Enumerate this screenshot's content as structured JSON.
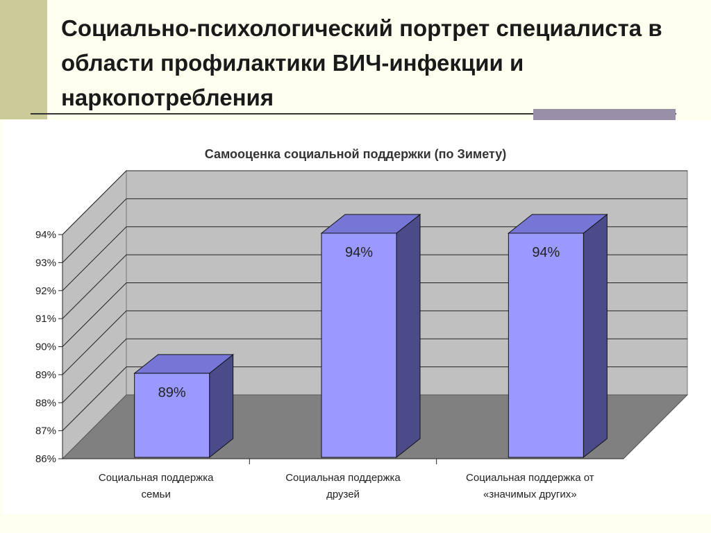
{
  "slide": {
    "title": "Социально-психологический портрет специалиста в области профилактики ВИЧ-инфекции и наркопотребления"
  },
  "colors": {
    "background": "#fffff0",
    "accent": "#cbcb99",
    "bar_front": "#9999ff",
    "bar_top": "#7676d6",
    "bar_side": "#4b4b8a",
    "wall": "#c0c0c0",
    "floor": "#808080"
  },
  "chart_data": {
    "type": "bar",
    "title": "Самооценка социальной поддержки (по Зимету)",
    "categories": [
      [
        "Социальная поддержка",
        "семьи"
      ],
      [
        "Социальная поддержка",
        "друзей"
      ],
      [
        "Социальная поддержка от",
        "«значимых других»"
      ]
    ],
    "values": [
      89,
      94,
      94
    ],
    "data_labels": [
      "89%",
      "94%",
      "94%"
    ],
    "y_ticks": [
      "86%",
      "87%",
      "88%",
      "89%",
      "90%",
      "91%",
      "92%",
      "93%",
      "94%"
    ],
    "ylim": [
      86,
      94
    ],
    "grid": true,
    "legend": "none",
    "style": "3d-column"
  }
}
